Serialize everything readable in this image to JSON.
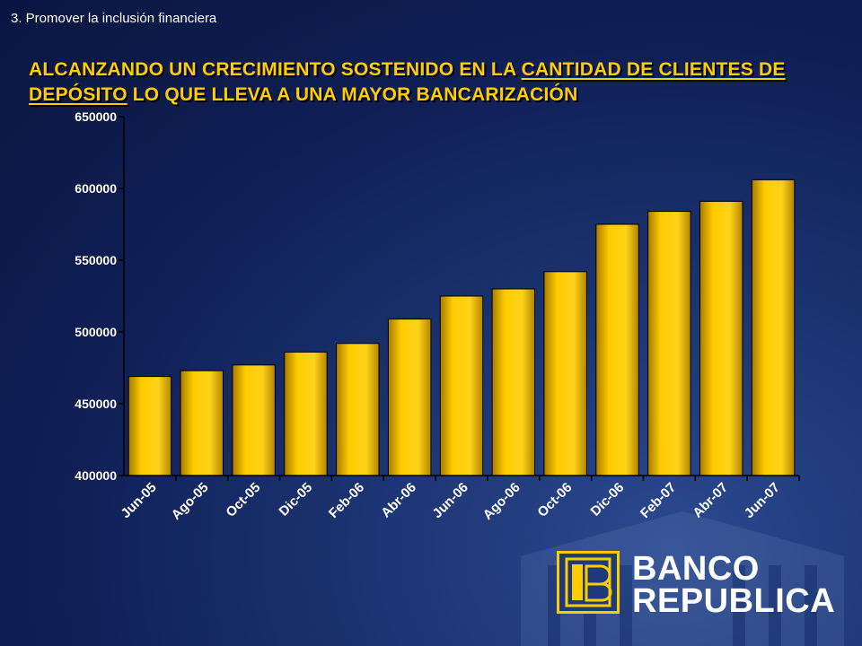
{
  "header": {
    "section_label": "3.  Promover la inclusión financiera",
    "title_part1": "ALCANZANDO UN CRECIMIENTO SOSTENIDO EN LA ",
    "title_underline1": "CANTIDAD DE CLIENTES DE DEPÓSITO",
    "title_part2": " LO QUE LLEVA A UNA MAYOR BANCARIZACIÓN"
  },
  "chart_data": {
    "type": "bar",
    "title": "",
    "xlabel": "",
    "ylabel": "",
    "ylim": [
      400000,
      650000
    ],
    "yticks": [
      "650000",
      "600000",
      "550000",
      "500000",
      "450000",
      "400000"
    ],
    "categories": [
      "Jun-05",
      "Ago-05",
      "Oct-05",
      "Dic-05",
      "Feb-06",
      "Abr-06",
      "Jun-06",
      "Ago-06",
      "Oct-06",
      "Dic-06",
      "Feb-07",
      "Abr-07",
      "Jun-07"
    ],
    "values": [
      469000,
      473000,
      477000,
      486000,
      492000,
      509000,
      525000,
      530000,
      542000,
      575000,
      584000,
      591000,
      606000
    ],
    "bar_color": "#ffcc00",
    "grid": false
  },
  "logo": {
    "line1": "BANCO",
    "line2": "REPUBLICA",
    "accent": "#ffcc00"
  }
}
